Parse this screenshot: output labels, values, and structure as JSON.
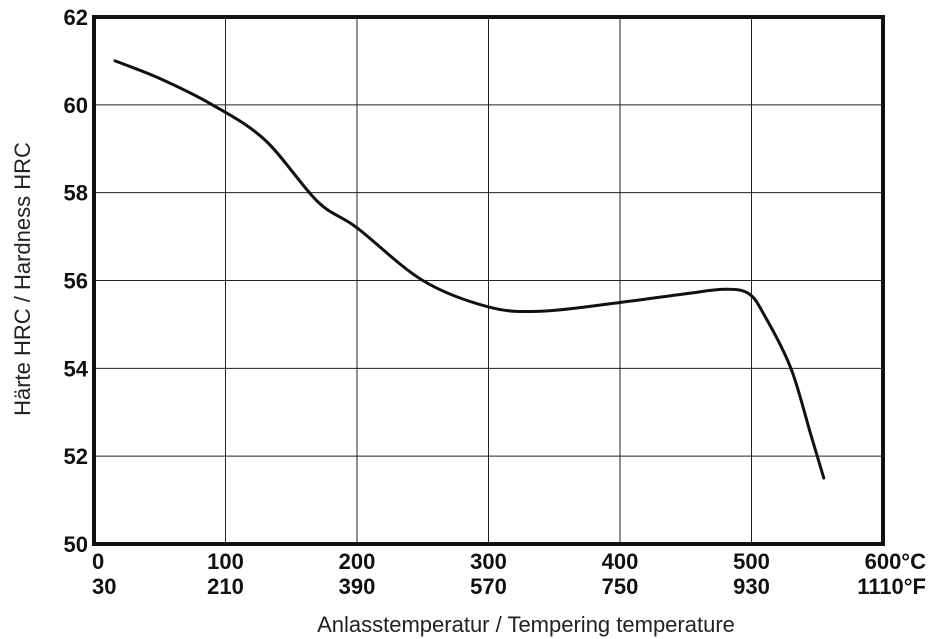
{
  "chart_data": {
    "type": "line",
    "xlabel": "Anlasstemperatur / Tempering temperature",
    "ylabel": "Härte HRC / Hardness HRC",
    "xlim": [
      0,
      600
    ],
    "ylim": [
      50,
      62
    ],
    "grid": true,
    "x_ticks_celsius": [
      "0",
      "100",
      "200",
      "300",
      "400",
      "500",
      "600°C"
    ],
    "x_ticks_fahrenheit": [
      "30",
      "210",
      "390",
      "570",
      "750",
      "930",
      "1110°F"
    ],
    "y_ticks": [
      "50",
      "52",
      "54",
      "56",
      "58",
      "60",
      "62"
    ],
    "series": [
      {
        "color": "#111111",
        "points": [
          [
            16,
            61.0
          ],
          [
            50,
            60.6
          ],
          [
            90,
            60.0
          ],
          [
            130,
            59.2
          ],
          [
            170,
            57.8
          ],
          [
            200,
            57.2
          ],
          [
            250,
            56.0
          ],
          [
            300,
            55.4
          ],
          [
            340,
            55.3
          ],
          [
            400,
            55.5
          ],
          [
            450,
            55.7
          ],
          [
            480,
            55.8
          ],
          [
            498,
            55.7
          ],
          [
            510,
            55.2
          ],
          [
            530,
            54.0
          ],
          [
            545,
            52.5
          ],
          [
            555,
            51.5
          ]
        ]
      }
    ]
  }
}
